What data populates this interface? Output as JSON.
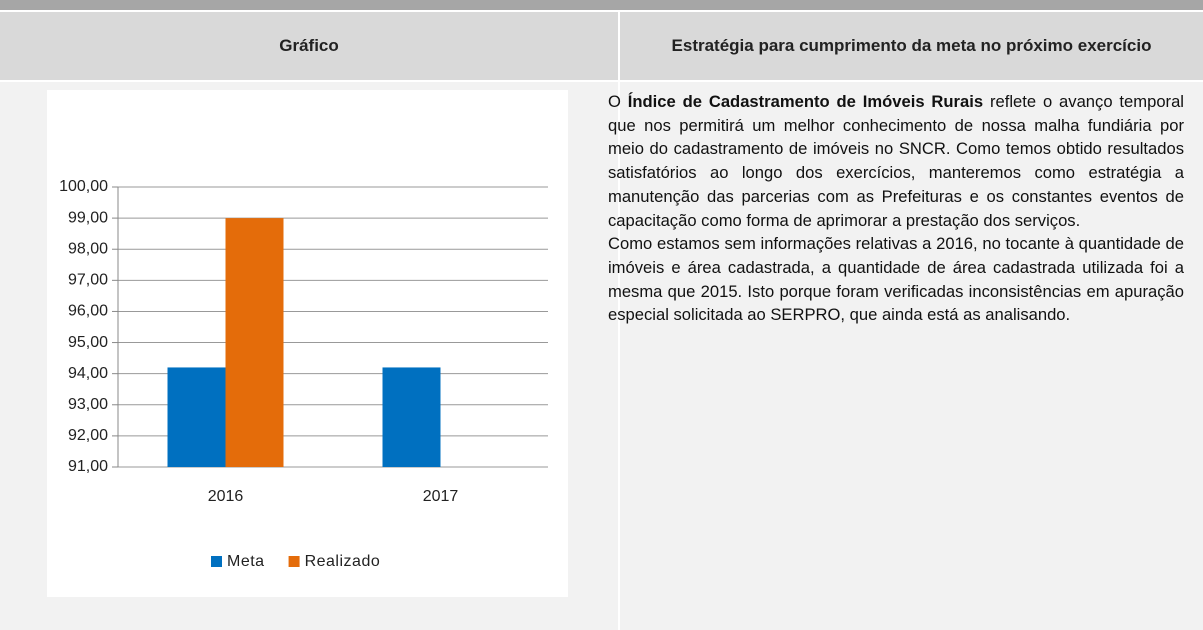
{
  "header": {
    "left": "Gráfico",
    "right": "Estratégia para cumprimento da meta no próximo exercício"
  },
  "chart_data": {
    "type": "bar",
    "categories": [
      "2016",
      "2017"
    ],
    "series": [
      {
        "name": "Meta",
        "color": "#0070c0",
        "values": [
          94.2,
          94.2
        ]
      },
      {
        "name": "Realizado",
        "color": "#e46c0a",
        "values": [
          99.0,
          null
        ]
      }
    ],
    "ylim": [
      91,
      100
    ],
    "yticks": [
      {
        "value": 91,
        "label": "91,00"
      },
      {
        "value": 92,
        "label": "92,00"
      },
      {
        "value": 93,
        "label": "93,00"
      },
      {
        "value": 94,
        "label": "94,00"
      },
      {
        "value": 95,
        "label": "95,00"
      },
      {
        "value": 96,
        "label": "96,00"
      },
      {
        "value": 97,
        "label": "97,00"
      },
      {
        "value": 98,
        "label": "98,00"
      },
      {
        "value": 99,
        "label": "99,00"
      },
      {
        "value": 100,
        "label": "100,00"
      }
    ],
    "grid": true,
    "legend": "bottom"
  },
  "text": {
    "paragraphs": [
      [
        {
          "text": "O ",
          "bold": false
        },
        {
          "text": "Índice de Cadastramento de Imóveis Rurais",
          "bold": true
        },
        {
          "text": " reflete o avanço temporal que nos permitirá um melhor conhecimento de nossa malha fundiária por meio do cadastramento de imóveis no SNCR. Como temos obtido resultados satisfatórios ao longo dos exercícios, manteremos como estratégia a manutenção das parcerias com as Prefeituras e os constantes eventos de capacitação como forma de aprimorar a prestação dos serviços.",
          "bold": false
        }
      ],
      [
        {
          "text": "Como estamos sem informações relativas a 2016, no tocante à quantidade de imóveis e área cadastrada, a quantidade de área cadastrada utilizada foi a mesma que 2015. Isto porque foram verificadas inconsistências em apuração especial solicitada ao SERPRO, que ainda está as analisando.",
          "bold": false
        }
      ]
    ]
  }
}
